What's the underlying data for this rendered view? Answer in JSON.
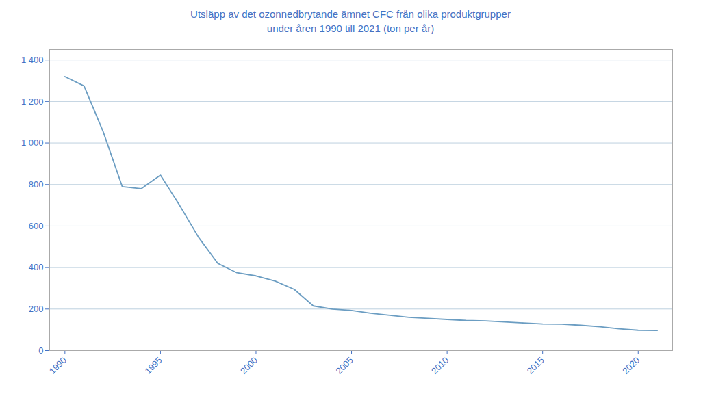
{
  "chart_data": {
    "type": "line",
    "title": "Utsläpp av det ozonnedbrytande ämnet CFC från olika produktgrupper\nunder åren 1990 till 2021 (ton per år)",
    "x": [
      1990,
      1991,
      1992,
      1993,
      1994,
      1995,
      1996,
      1997,
      1998,
      1999,
      2000,
      2001,
      2002,
      2003,
      2004,
      2005,
      2006,
      2007,
      2008,
      2009,
      2010,
      2011,
      2012,
      2013,
      2014,
      2015,
      2016,
      2017,
      2018,
      2019,
      2020,
      2021
    ],
    "values": [
      1320,
      1275,
      1055,
      790,
      780,
      845,
      700,
      545,
      420,
      375,
      360,
      335,
      295,
      215,
      200,
      193,
      180,
      170,
      160,
      155,
      150,
      145,
      143,
      138,
      133,
      128,
      127,
      122,
      115,
      105,
      98,
      97
    ],
    "color": "#6B9DC2",
    "xlim": [
      1989.2,
      2021.8
    ],
    "xticks": [
      1990,
      1995,
      2000,
      2005,
      2010,
      2015,
      2020
    ],
    "ylim": [
      0,
      1450
    ],
    "yticks": [
      0,
      200,
      400,
      600,
      800,
      {
        "value": 1000,
        "label": "1 000"
      },
      {
        "value": 1200,
        "label": "1 200"
      },
      {
        "value": 1400,
        "label": "1 400"
      }
    ],
    "grid": true
  }
}
